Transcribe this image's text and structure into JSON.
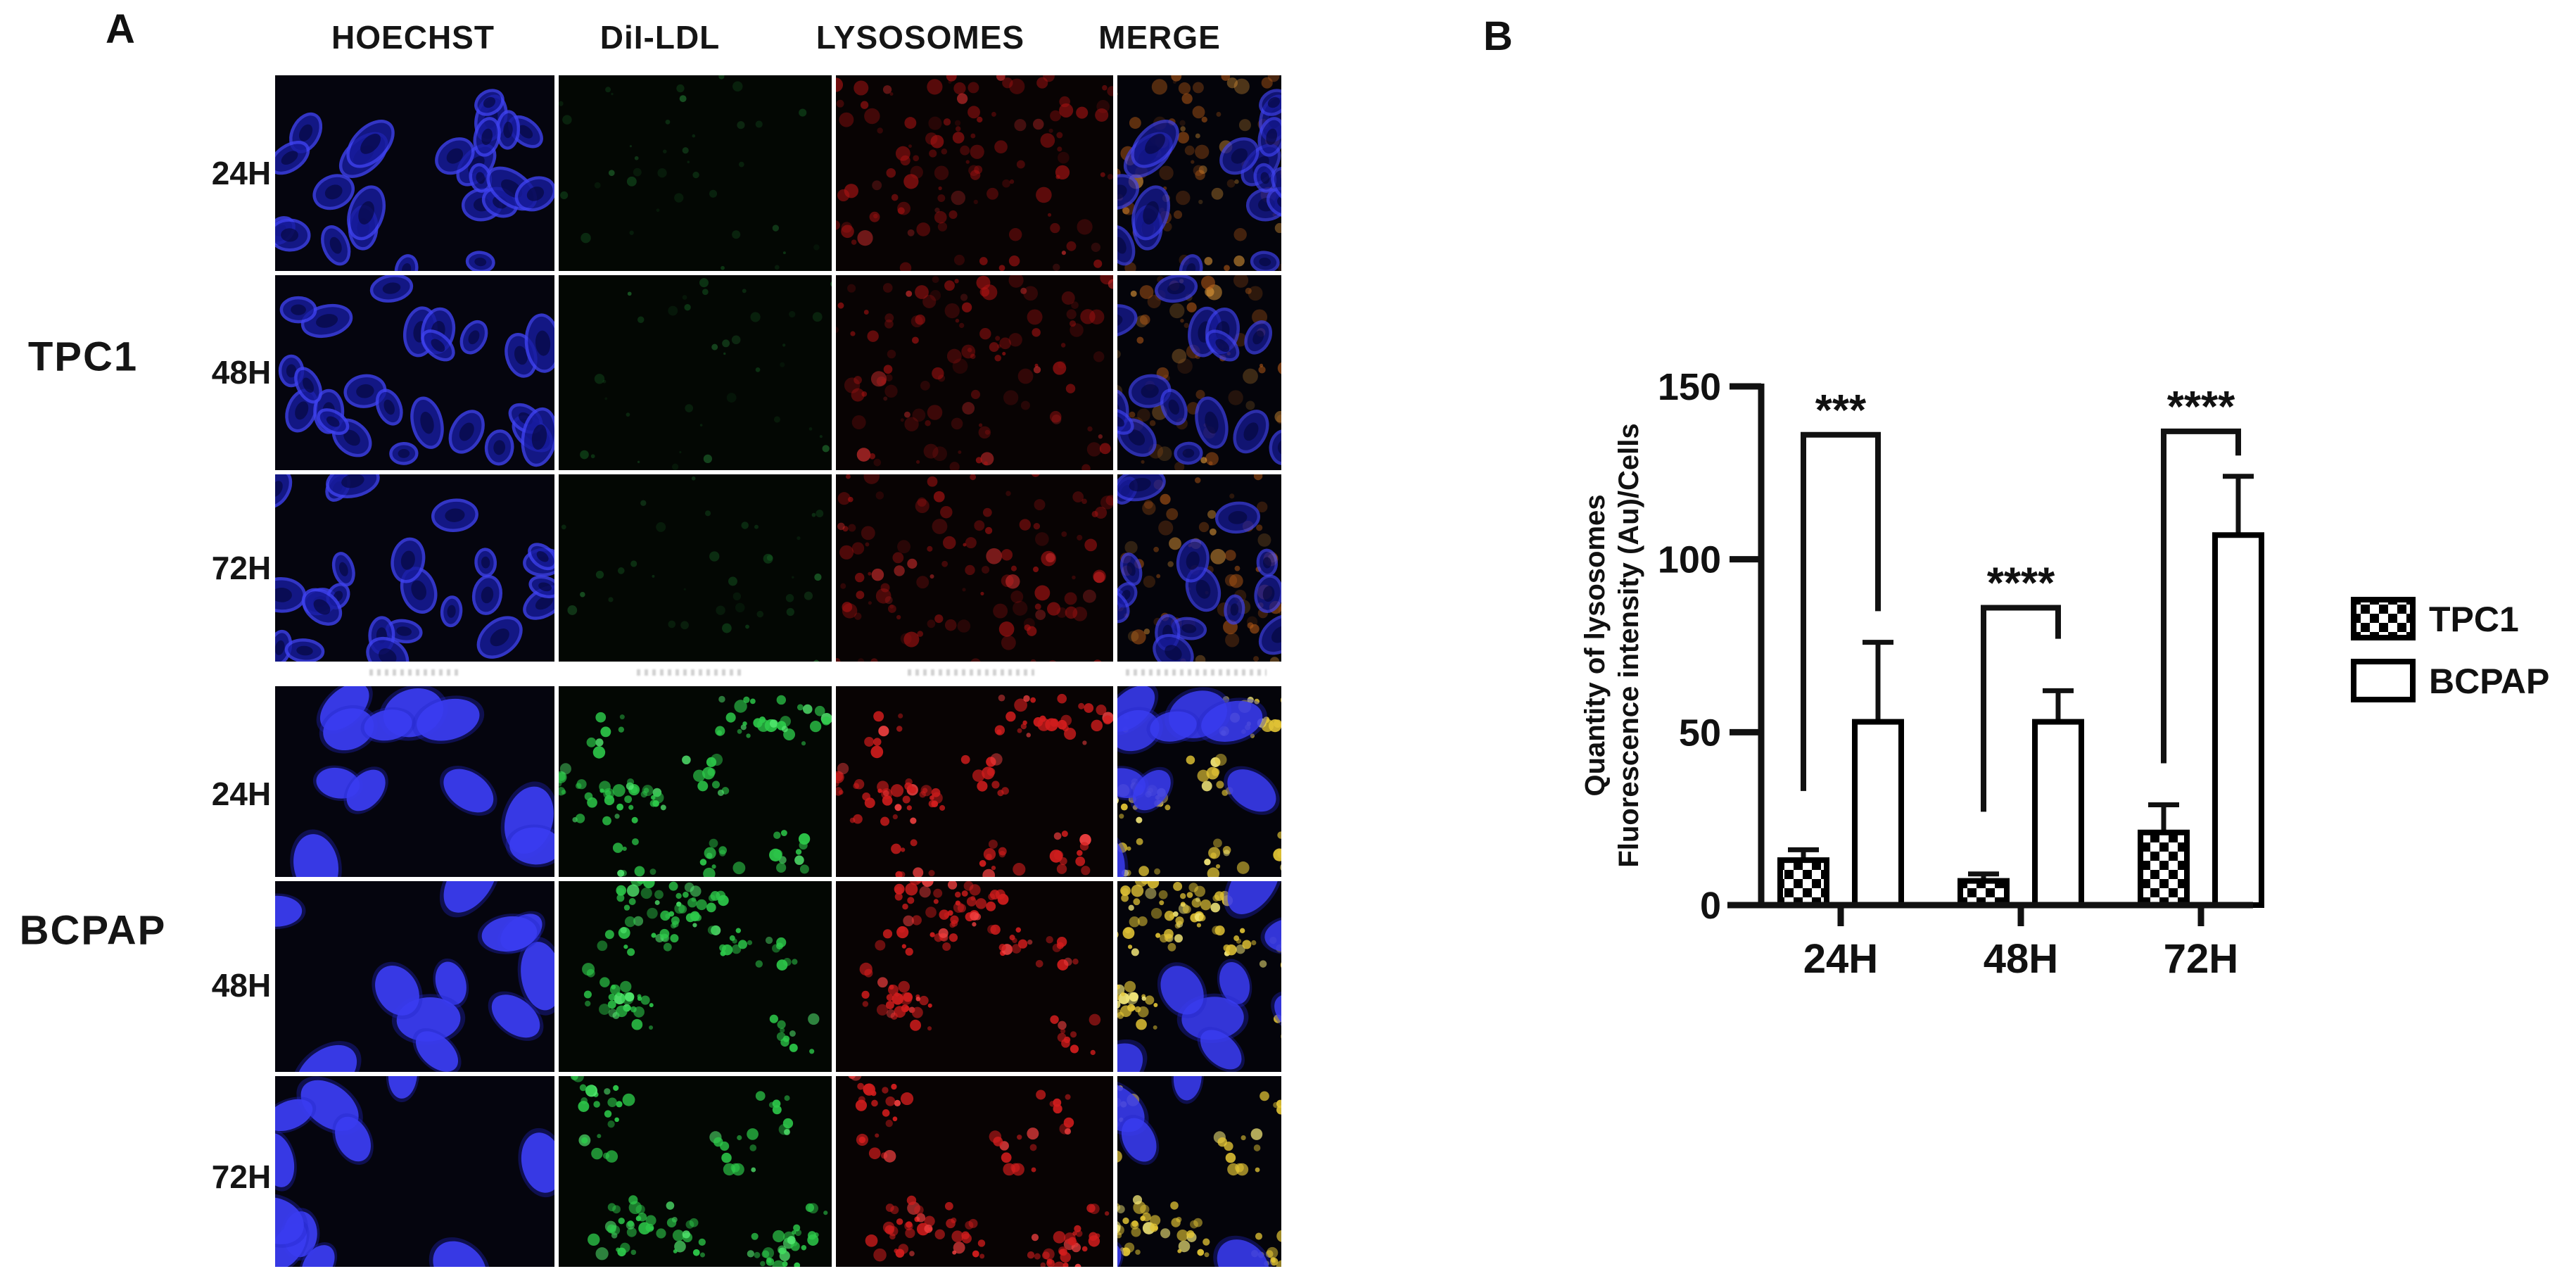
{
  "figure": {
    "panel_a": {
      "label": "A",
      "columns": [
        "HOECHST",
        "DiI-LDL",
        "LYSOSOMES",
        "MERGE"
      ],
      "cell_lines": [
        {
          "name": "TPC1",
          "timepoints": [
            "24H",
            "48H",
            "72H"
          ]
        },
        {
          "name": "BCPAP",
          "timepoints": [
            "24H",
            "48H",
            "72H"
          ]
        }
      ],
      "channel_colors": {
        "hoechst_blue": "#3a3cf0",
        "dil_ldl_green": "#2dc94a",
        "lysosomes_red": "#d21d1d",
        "merge_overlap_yellow": "#e2c435",
        "merge_overlap_orange": "#b55a16"
      }
    },
    "panel_b": {
      "label": "B"
    }
  },
  "chart_data": {
    "type": "bar",
    "title": "",
    "xlabel": "",
    "ylabel_lines": [
      "Quantity of lysosomes",
      "Fluorescence intensity (Au)/Cells"
    ],
    "categories": [
      "24H",
      "48H",
      "72H"
    ],
    "series": [
      {
        "name": "TPC1",
        "fill": "checkerboard-black-white",
        "values": [
          13,
          7,
          21
        ],
        "errors_plus": [
          3,
          2,
          8
        ]
      },
      {
        "name": "BCPAP",
        "fill": "#ffffff",
        "values": [
          53,
          53,
          107
        ],
        "errors_plus": [
          23,
          9,
          17
        ]
      }
    ],
    "ylim": [
      0,
      150
    ],
    "yticks": [
      0,
      50,
      100,
      150
    ],
    "grid": false,
    "legend": {
      "position": "right",
      "entries": [
        "TPC1",
        "BCPAP"
      ]
    },
    "significance": [
      {
        "category": "24H",
        "label": "***",
        "bracket_height": 136,
        "left_arm_bottom": 33,
        "right_arm_bottom": 85
      },
      {
        "category": "48H",
        "label": "****",
        "bracket_height": 86,
        "left_arm_bottom": 27,
        "right_arm_bottom": 77
      },
      {
        "category": "72H",
        "label": "****",
        "bracket_height": 137,
        "left_arm_bottom": 41,
        "right_arm_bottom": 130
      }
    ],
    "axis_color": "#111111"
  }
}
